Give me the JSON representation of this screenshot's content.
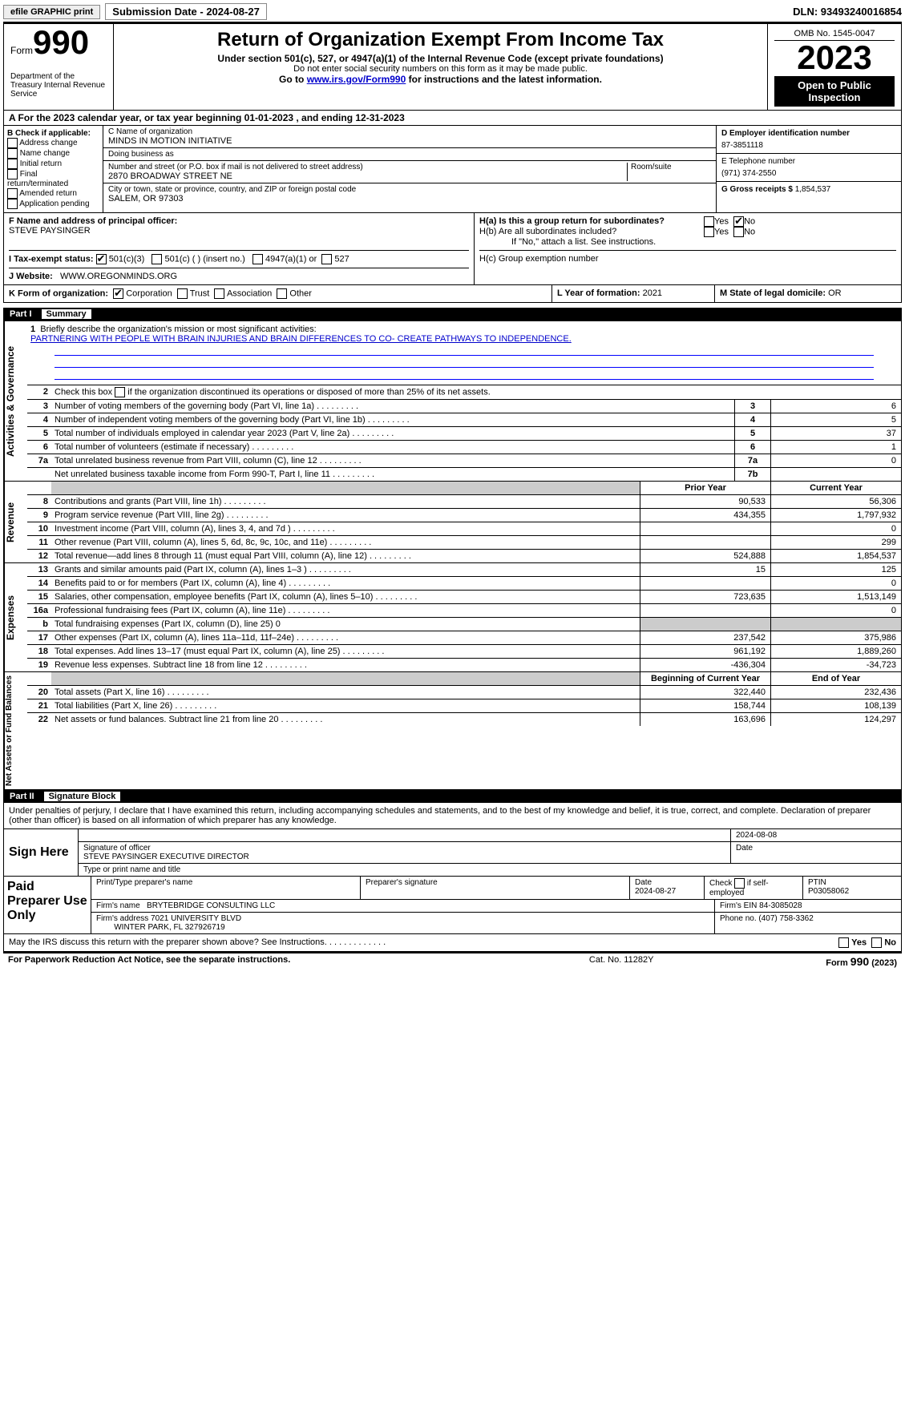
{
  "topbar": {
    "efile": "efile GRAPHIC print",
    "subdate_label": "Submission Date - 2024-08-27",
    "dln": "DLN: 93493240016854"
  },
  "header": {
    "form_word": "Form",
    "form_no": "990",
    "dept": "Department of the Treasury\nInternal Revenue Service",
    "title": "Return of Organization Exempt From Income Tax",
    "sub1": "Under section 501(c), 527, or 4947(a)(1) of the Internal Revenue Code (except private foundations)",
    "sub2": "Do not enter social security numbers on this form as it may be made public.",
    "sub3_pre": "Go to ",
    "sub3_link": "www.irs.gov/Form990",
    "sub3_post": " for instructions and the latest information.",
    "omb": "OMB No. 1545-0047",
    "year": "2023",
    "public": "Open to Public Inspection"
  },
  "lineA": "A For the 2023 calendar year, or tax year beginning 01-01-2023    , and ending 12-31-2023",
  "boxB": {
    "hdr": "B Check if applicable:",
    "opts": [
      "Address change",
      "Name change",
      "Initial return",
      "Final return/terminated",
      "Amended return",
      "Application pending"
    ]
  },
  "boxC": {
    "name_lbl": "C Name of organization",
    "name": "MINDS IN MOTION INITIATIVE",
    "dba_lbl": "Doing business as",
    "dba": "",
    "addr_lbl": "Number and street (or P.O. box if mail is not delivered to street address)",
    "room_lbl": "Room/suite",
    "addr": "2870 BROADWAY STREET NE",
    "city_lbl": "City or town, state or province, country, and ZIP or foreign postal code",
    "city": "SALEM, OR  97303"
  },
  "boxD": {
    "lbl": "D Employer identification number",
    "val": "87-3851118"
  },
  "boxE": {
    "lbl": "E Telephone number",
    "val": "(971) 374-2550"
  },
  "boxG": {
    "lbl": "G Gross receipts $",
    "val": "1,854,537"
  },
  "boxF": {
    "lbl": "F  Name and address of principal officer:",
    "val": "STEVE PAYSINGER"
  },
  "boxH": {
    "a_lbl": "H(a)  Is this a group return for subordinates?",
    "a_yes": "Yes",
    "a_no": "No",
    "a_checked": "No",
    "b_lbl": "H(b)  Are all subordinates included?",
    "b_note": "If \"No,\" attach a list. See instructions.",
    "c_lbl": "H(c)  Group exemption number"
  },
  "rowI": {
    "lbl": "I   Tax-exempt status:",
    "o1": "501(c)(3)",
    "o2": "501(c) (  ) (insert no.)",
    "o3": "4947(a)(1) or",
    "o4": "527",
    "checked": "501(c)(3)"
  },
  "rowJ": {
    "lbl": "J   Website:",
    "val": "WWW.OREGONMINDS.ORG"
  },
  "rowK": {
    "lbl": "K Form of organization:",
    "o1": "Corporation",
    "o2": "Trust",
    "o3": "Association",
    "o4": "Other",
    "checked": "Corporation"
  },
  "rowL": {
    "lbl": "L Year of formation:",
    "val": "2021"
  },
  "rowM": {
    "lbl": "M State of legal domicile:",
    "val": "OR"
  },
  "part1": {
    "num": "Part I",
    "title": "Summary"
  },
  "summary": {
    "tabs": [
      "Activities & Governance",
      "Revenue",
      "Expenses",
      "Net Assets or Fund Balances"
    ],
    "briefly_lbl": "Briefly describe the organization's mission or most significant activities:",
    "mission": "PARTNERING WITH PEOPLE WITH BRAIN INJURIES AND BRAIN DIFFERENCES TO CO- CREATE PATHWAYS TO INDEPENDENCE.",
    "line2": "Check this box   if the organization discontinued its operations or disposed of more than 25% of its net assets.",
    "ag_rows": [
      {
        "n": "3",
        "t": "Number of voting members of the governing body (Part VI, line 1a)",
        "box": "3",
        "v": "6"
      },
      {
        "n": "4",
        "t": "Number of independent voting members of the governing body (Part VI, line 1b)",
        "box": "4",
        "v": "5"
      },
      {
        "n": "5",
        "t": "Total number of individuals employed in calendar year 2023 (Part V, line 2a)",
        "box": "5",
        "v": "37"
      },
      {
        "n": "6",
        "t": "Total number of volunteers (estimate if necessary)",
        "box": "6",
        "v": "1"
      },
      {
        "n": "7a",
        "t": "Total unrelated business revenue from Part VIII, column (C), line 12",
        "box": "7a",
        "v": "0"
      },
      {
        "n": "",
        "t": "Net unrelated business taxable income from Form 990-T, Part I, line 11",
        "box": "7b",
        "v": ""
      }
    ],
    "hdr_prior": "Prior Year",
    "hdr_cur": "Current Year",
    "rev_rows": [
      {
        "n": "8",
        "t": "Contributions and grants (Part VIII, line 1h)",
        "p": "90,533",
        "c": "56,306"
      },
      {
        "n": "9",
        "t": "Program service revenue (Part VIII, line 2g)",
        "p": "434,355",
        "c": "1,797,932"
      },
      {
        "n": "10",
        "t": "Investment income (Part VIII, column (A), lines 3, 4, and 7d )",
        "p": "",
        "c": "0"
      },
      {
        "n": "11",
        "t": "Other revenue (Part VIII, column (A), lines 5, 6d, 8c, 9c, 10c, and 11e)",
        "p": "",
        "c": "299"
      },
      {
        "n": "12",
        "t": "Total revenue—add lines 8 through 11 (must equal Part VIII, column (A), line 12)",
        "p": "524,888",
        "c": "1,854,537"
      }
    ],
    "exp_rows": [
      {
        "n": "13",
        "t": "Grants and similar amounts paid (Part IX, column (A), lines 1–3 )",
        "p": "15",
        "c": "125"
      },
      {
        "n": "14",
        "t": "Benefits paid to or for members (Part IX, column (A), line 4)",
        "p": "",
        "c": "0"
      },
      {
        "n": "15",
        "t": "Salaries, other compensation, employee benefits (Part IX, column (A), lines 5–10)",
        "p": "723,635",
        "c": "1,513,149"
      },
      {
        "n": "16a",
        "t": "Professional fundraising fees (Part IX, column (A), line 11e)",
        "p": "",
        "c": "0"
      },
      {
        "n": "b",
        "t": "Total fundraising expenses (Part IX, column (D), line 25) 0",
        "p": "__SHADE__",
        "c": "__SHADE__"
      },
      {
        "n": "17",
        "t": "Other expenses (Part IX, column (A), lines 11a–11d, 11f–24e)",
        "p": "237,542",
        "c": "375,986"
      },
      {
        "n": "18",
        "t": "Total expenses. Add lines 13–17 (must equal Part IX, column (A), line 25)",
        "p": "961,192",
        "c": "1,889,260"
      },
      {
        "n": "19",
        "t": "Revenue less expenses. Subtract line 18 from line 12",
        "p": "-436,304",
        "c": "-34,723"
      }
    ],
    "na_hdr_beg": "Beginning of Current Year",
    "na_hdr_end": "End of Year",
    "na_rows": [
      {
        "n": "20",
        "t": "Total assets (Part X, line 16)",
        "p": "322,440",
        "c": "232,436"
      },
      {
        "n": "21",
        "t": "Total liabilities (Part X, line 26)",
        "p": "158,744",
        "c": "108,139"
      },
      {
        "n": "22",
        "t": "Net assets or fund balances. Subtract line 21 from line 20",
        "p": "163,696",
        "c": "124,297"
      }
    ]
  },
  "part2": {
    "num": "Part II",
    "title": "Signature Block"
  },
  "sig": {
    "decl": "Under penalties of perjury, I declare that I have examined this return, including accompanying schedules and statements, and to the best of my knowledge and belief, it is true, correct, and complete. Declaration of preparer (other than officer) is based on all information of which preparer has any knowledge.",
    "signhere": "Sign Here",
    "sigoff": "Signature of officer",
    "date_lbl": "Date",
    "date": "2024-08-08",
    "officer": "STEVE PAYSINGER  EXECUTIVE DIRECTOR",
    "typelbl": "Type or print name and title"
  },
  "paid": {
    "lbl": "Paid Preparer Use Only",
    "h1": "Print/Type preparer's name",
    "h2": "Preparer's signature",
    "h3": "Date",
    "h4": "Check  if self-employed",
    "h5": "PTIN",
    "date": "2024-08-27",
    "ptin": "P03058062",
    "firm_lbl": "Firm's name",
    "firm": "BRYTEBRIDGE CONSULTING LLC",
    "ein_lbl": "Firm's EIN",
    "ein": "84-3085028",
    "addr_lbl": "Firm's address",
    "addr": "7021 UNIVERSITY BLVD",
    "addr2": "WINTER PARK, FL  327926719",
    "phone_lbl": "Phone no.",
    "phone": "(407) 758-3362"
  },
  "discuss": {
    "txt": "May the IRS discuss this return with the preparer shown above? See Instructions.",
    "yes": "Yes",
    "no": "No"
  },
  "footer": {
    "l": "For Paperwork Reduction Act Notice, see the separate instructions.",
    "c": "Cat. No. 11282Y",
    "r": "Form 990 (2023)"
  }
}
